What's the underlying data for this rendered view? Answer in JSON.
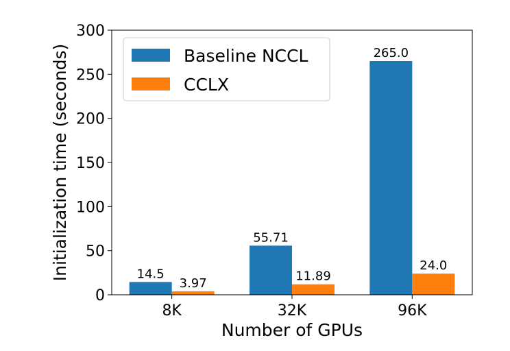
{
  "chart_data": {
    "type": "bar",
    "title": "",
    "xlabel": "Number of GPUs",
    "ylabel": "Initialization time (seconds)",
    "categories": [
      "8K",
      "32K",
      "96K"
    ],
    "series": [
      {
        "name": "Baseline NCCL",
        "color": "#1f77b4",
        "values": [
          14.5,
          55.71,
          265.0
        ],
        "labels": [
          "14.5",
          "55.71",
          "265.0"
        ]
      },
      {
        "name": "CCLX",
        "color": "#ff7f0e",
        "values": [
          3.97,
          11.89,
          24.0
        ],
        "labels": [
          "3.97",
          "11.89",
          "24.0"
        ]
      }
    ],
    "ylim": [
      0,
      300
    ],
    "yticks": [
      0,
      50,
      100,
      150,
      200,
      250,
      300
    ],
    "ytick_labels": [
      "0",
      "50",
      "100",
      "150",
      "200",
      "250",
      "300"
    ],
    "grid": false,
    "legend_position": "upper-left"
  }
}
